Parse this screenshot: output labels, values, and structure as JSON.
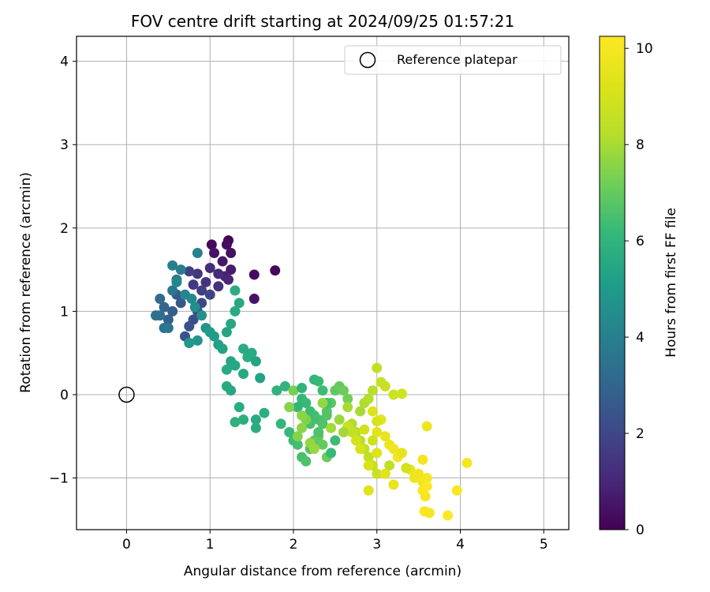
{
  "chart_data": {
    "type": "scatter",
    "title": "FOV centre drift starting at 2024/09/25 01:57:21",
    "xlabel": "Angular distance from reference (arcmin)",
    "ylabel": "Rotation from reference (arcmin)",
    "xlim": [
      -0.6,
      5.3
    ],
    "ylim": [
      -1.62,
      4.3
    ],
    "xticks": [
      0,
      1,
      2,
      3,
      4,
      5
    ],
    "xtick_labels": [
      "0",
      "1",
      "2",
      "3",
      "4",
      "5"
    ],
    "yticks": [
      -1,
      0,
      1,
      2,
      3,
      4
    ],
    "ytick_labels": [
      "−1",
      "0",
      "1",
      "2",
      "3",
      "4"
    ],
    "grid": true,
    "legend": {
      "position": "top-right",
      "entries": [
        "Reference platepar"
      ]
    },
    "reference_point": {
      "x": 0,
      "y": 0,
      "label": "Reference platepar",
      "marker": "hollow-circle"
    },
    "colorbar": {
      "label": "Hours from first FF file",
      "range": [
        0,
        10.25
      ],
      "ticks": [
        0,
        2,
        4,
        6,
        8,
        10
      ],
      "tick_labels": [
        "0",
        "2",
        "4",
        "6",
        "8",
        "10"
      ],
      "colormap": "viridis"
    },
    "points": [
      [
        1.02,
        1.8,
        0.2
      ],
      [
        1.22,
        1.85,
        0.1
      ],
      [
        1.2,
        1.8,
        0.3
      ],
      [
        1.25,
        1.7,
        0.4
      ],
      [
        1.05,
        1.7,
        0.5
      ],
      [
        1.15,
        1.6,
        0.6
      ],
      [
        1.53,
        1.44,
        0.3
      ],
      [
        1.78,
        1.49,
        0.2
      ],
      [
        1.53,
        1.15,
        0.5
      ],
      [
        1.25,
        1.5,
        0.7
      ],
      [
        1.18,
        1.42,
        0.9
      ],
      [
        1.22,
        1.38,
        1.0
      ],
      [
        1.1,
        1.45,
        1.1
      ],
      [
        1.0,
        1.52,
        1.2
      ],
      [
        0.95,
        1.35,
        1.4
      ],
      [
        0.85,
        1.45,
        1.5
      ],
      [
        0.9,
        1.25,
        1.7
      ],
      [
        0.8,
        1.32,
        1.6
      ],
      [
        0.75,
        1.48,
        1.8
      ],
      [
        1.1,
        1.3,
        1.3
      ],
      [
        1.0,
        1.2,
        1.9
      ],
      [
        0.9,
        1.1,
        2.0
      ],
      [
        0.85,
        1.0,
        2.1
      ],
      [
        0.8,
        0.9,
        2.2
      ],
      [
        0.75,
        0.82,
        2.3
      ],
      [
        0.7,
        0.7,
        2.4
      ],
      [
        0.65,
        1.1,
        2.5
      ],
      [
        0.6,
        1.2,
        2.6
      ],
      [
        0.55,
        1.0,
        2.7
      ],
      [
        0.5,
        0.9,
        2.8
      ],
      [
        0.45,
        1.05,
        3.0
      ],
      [
        0.4,
        1.15,
        3.2
      ],
      [
        0.4,
        0.95,
        3.3
      ],
      [
        0.35,
        0.95,
        3.4
      ],
      [
        0.45,
        0.8,
        3.5
      ],
      [
        0.5,
        0.8,
        3.6
      ],
      [
        0.55,
        1.25,
        3.7
      ],
      [
        0.6,
        1.38,
        3.8
      ],
      [
        0.65,
        1.5,
        3.9
      ],
      [
        0.55,
        1.55,
        4.0
      ],
      [
        0.85,
        1.7,
        4.1
      ],
      [
        0.6,
        1.35,
        4.2
      ],
      [
        0.7,
        1.2,
        4.3
      ],
      [
        0.78,
        1.15,
        4.4
      ],
      [
        0.82,
        1.05,
        4.5
      ],
      [
        0.9,
        0.95,
        4.6
      ],
      [
        0.95,
        0.8,
        4.7
      ],
      [
        0.85,
        0.65,
        4.8
      ],
      [
        0.75,
        0.62,
        4.9
      ],
      [
        1.0,
        0.75,
        5.0
      ],
      [
        1.05,
        0.7,
        5.1
      ],
      [
        1.1,
        0.6,
        5.2
      ],
      [
        1.15,
        0.55,
        5.3
      ],
      [
        1.2,
        0.75,
        5.4
      ],
      [
        1.25,
        0.85,
        5.5
      ],
      [
        1.3,
        1.0,
        5.6
      ],
      [
        1.3,
        1.25,
        5.7
      ],
      [
        1.35,
        1.1,
        5.5
      ],
      [
        1.2,
        0.3,
        5.6
      ],
      [
        1.25,
        0.4,
        5.4
      ],
      [
        1.3,
        0.35,
        5.5
      ],
      [
        1.4,
        0.55,
        5.6
      ],
      [
        1.45,
        0.45,
        5.7
      ],
      [
        1.5,
        0.5,
        5.6
      ],
      [
        1.4,
        0.25,
        5.5
      ],
      [
        1.55,
        0.4,
        5.4
      ],
      [
        1.6,
        0.2,
        5.3
      ],
      [
        1.25,
        0.05,
        5.5
      ],
      [
        1.2,
        0.1,
        5.6
      ],
      [
        1.35,
        -0.15,
        5.7
      ],
      [
        1.4,
        -0.3,
        5.8
      ],
      [
        1.3,
        -0.33,
        5.9
      ],
      [
        1.55,
        -0.3,
        5.6
      ],
      [
        1.55,
        -0.4,
        5.7
      ],
      [
        1.65,
        -0.22,
        5.8
      ],
      [
        1.8,
        0.05,
        5.9
      ],
      [
        1.9,
        0.1,
        6.0
      ],
      [
        1.85,
        -0.35,
        6.1
      ],
      [
        1.95,
        -0.45,
        6.2
      ],
      [
        2.0,
        -0.55,
        6.3
      ],
      [
        2.05,
        -0.6,
        6.4
      ],
      [
        2.1,
        -0.75,
        6.5
      ],
      [
        2.15,
        -0.8,
        6.6
      ],
      [
        2.2,
        -0.65,
        6.7
      ],
      [
        2.25,
        -0.55,
        6.8
      ],
      [
        2.3,
        -0.5,
        6.9
      ],
      [
        2.35,
        -0.6,
        7.0
      ],
      [
        2.4,
        -0.75,
        7.1
      ],
      [
        2.45,
        -0.7,
        6.2
      ],
      [
        2.5,
        -0.55,
        6.3
      ],
      [
        2.05,
        -0.15,
        6.0
      ],
      [
        2.1,
        -0.05,
        6.1
      ],
      [
        2.15,
        -0.1,
        6.2
      ],
      [
        2.2,
        -0.2,
        6.3
      ],
      [
        2.25,
        -0.25,
        6.4
      ],
      [
        2.3,
        -0.3,
        6.5
      ],
      [
        2.35,
        -0.35,
        6.6
      ],
      [
        2.4,
        -0.2,
        6.7
      ],
      [
        2.45,
        -0.1,
        6.8
      ],
      [
        2.5,
        0.05,
        6.9
      ],
      [
        2.55,
        0.1,
        7.0
      ],
      [
        2.6,
        0.05,
        7.1
      ],
      [
        2.65,
        -0.05,
        7.2
      ],
      [
        2.0,
        0.05,
        7.3
      ],
      [
        2.1,
        0.08,
        6.0
      ],
      [
        2.25,
        0.18,
        6.1
      ],
      [
        2.3,
        0.16,
        6.2
      ],
      [
        2.35,
        0.05,
        6.3
      ],
      [
        2.4,
        -0.1,
        6.4
      ],
      [
        2.2,
        -0.35,
        6.5
      ],
      [
        2.3,
        -0.45,
        6.6
      ],
      [
        2.4,
        -0.25,
        6.7
      ],
      [
        2.15,
        -0.3,
        7.4
      ],
      [
        2.05,
        -0.5,
        7.5
      ],
      [
        2.1,
        -0.4,
        7.6
      ],
      [
        2.2,
        -0.58,
        7.7
      ],
      [
        2.25,
        -0.65,
        7.8
      ],
      [
        2.45,
        -0.4,
        7.9
      ],
      [
        2.65,
        -0.15,
        8.0
      ],
      [
        2.7,
        -0.35,
        8.1
      ],
      [
        2.75,
        -0.45,
        8.2
      ],
      [
        2.8,
        -0.55,
        8.3
      ],
      [
        2.85,
        -0.65,
        8.4
      ],
      [
        2.9,
        -0.75,
        8.5
      ],
      [
        2.95,
        -0.85,
        8.6
      ],
      [
        3.0,
        -0.95,
        8.7
      ],
      [
        2.8,
        -0.2,
        8.0
      ],
      [
        2.85,
        -0.1,
        8.1
      ],
      [
        2.9,
        -0.05,
        8.2
      ],
      [
        2.95,
        0.05,
        8.3
      ],
      [
        3.0,
        0.32,
        8.5
      ],
      [
        3.05,
        0.15,
        8.6
      ],
      [
        3.1,
        0.1,
        8.7
      ],
      [
        3.2,
        0.0,
        8.8
      ],
      [
        3.3,
        0.01,
        8.9
      ],
      [
        2.75,
        -0.55,
        9.0
      ],
      [
        2.8,
        -0.65,
        9.1
      ],
      [
        2.9,
        -0.85,
        9.2
      ],
      [
        2.9,
        -1.15,
        9.3
      ],
      [
        3.0,
        -0.45,
        9.4
      ],
      [
        3.05,
        -0.3,
        9.5
      ],
      [
        3.1,
        -0.5,
        9.6
      ],
      [
        3.15,
        -0.6,
        9.7
      ],
      [
        3.2,
        -0.65,
        9.8
      ],
      [
        3.25,
        -0.75,
        9.9
      ],
      [
        3.3,
        -0.7,
        9.5
      ],
      [
        3.4,
        -0.9,
        9.6
      ],
      [
        3.45,
        -1.0,
        9.7
      ],
      [
        3.5,
        -0.95,
        9.8
      ],
      [
        3.55,
        -1.05,
        9.9
      ],
      [
        3.6,
        -1.0,
        10.0
      ],
      [
        3.55,
        -1.15,
        10.1
      ],
      [
        3.6,
        -1.1,
        10.2
      ],
      [
        3.58,
        -1.22,
        10.1
      ],
      [
        3.57,
        -1.4,
        10.2
      ],
      [
        3.63,
        -1.42,
        10.0
      ],
      [
        3.85,
        -1.45,
        10.2
      ],
      [
        3.96,
        -1.15,
        10.1
      ],
      [
        4.08,
        -0.82,
        10.0
      ],
      [
        3.6,
        -0.38,
        9.8
      ],
      [
        3.55,
        -0.78,
        9.9
      ],
      [
        3.2,
        -1.08,
        9.6
      ],
      [
        3.1,
        -0.95,
        9.4
      ],
      [
        3.0,
        -0.7,
        9.3
      ],
      [
        2.95,
        -0.2,
        9.2
      ],
      [
        3.0,
        -0.32,
        9.1
      ],
      [
        2.85,
        -0.42,
        8.9
      ],
      [
        2.95,
        -0.55,
        8.8
      ],
      [
        2.65,
        -0.38,
        8.7
      ],
      [
        2.7,
        -0.45,
        8.6
      ],
      [
        3.15,
        -0.85,
        8.5
      ],
      [
        3.35,
        -0.88,
        9.0
      ],
      [
        2.6,
        -0.45,
        7.9
      ],
      [
        2.55,
        -0.3,
        7.8
      ],
      [
        2.35,
        -0.1,
        7.7
      ],
      [
        2.1,
        -0.25,
        7.6
      ],
      [
        1.95,
        -0.15,
        7.5
      ]
    ]
  }
}
